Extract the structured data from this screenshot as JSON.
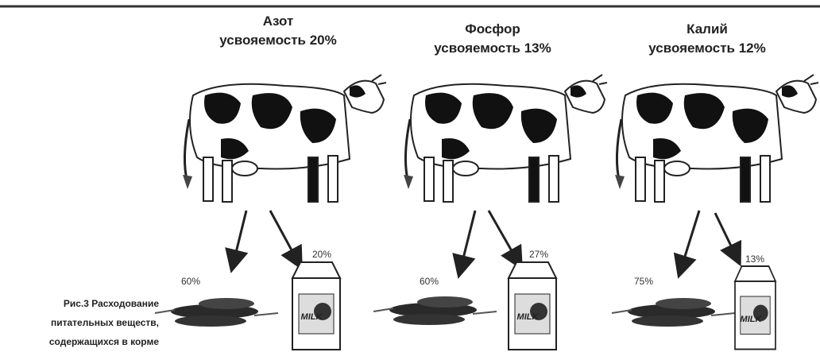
{
  "caption": [
    "Рис.3 Расходование",
    "питательных веществ,",
    "содержащихся в корме"
  ],
  "carton_label": "MILK",
  "panels": [
    {
      "title": "Азот",
      "subtitle": "усвояемость 20%",
      "manure": "60%",
      "milk": "20%"
    },
    {
      "title": "Фосфор",
      "subtitle": "усвояемость 13%",
      "manure": "60%",
      "milk": "27%"
    },
    {
      "title": "Калий",
      "subtitle": "усвояемость 12%",
      "manure": "75%",
      "milk": "13%"
    }
  ]
}
